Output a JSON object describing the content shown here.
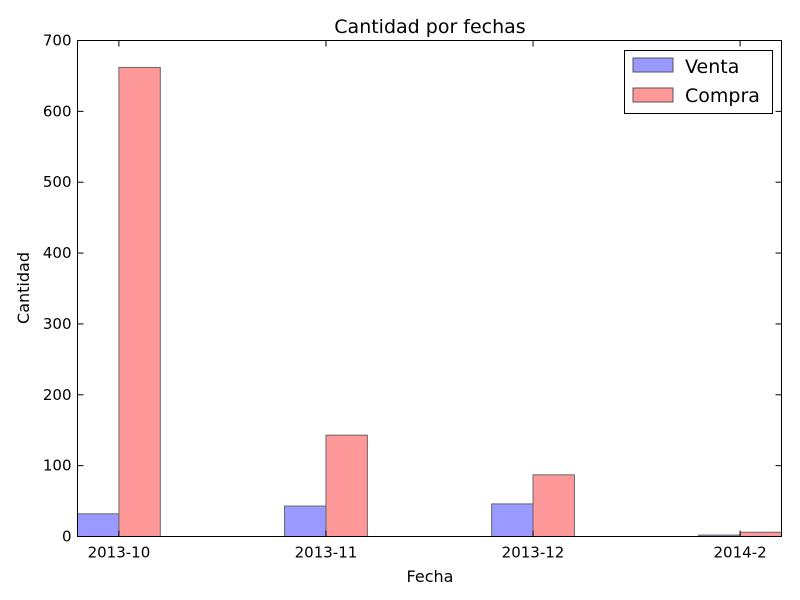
{
  "chart_data": {
    "type": "bar",
    "title": "Cantidad por fechas",
    "xlabel": "Fecha",
    "ylabel": "Cantidad",
    "categories": [
      "2013-10",
      "2013-11",
      "2013-12",
      "2014-2"
    ],
    "series": [
      {
        "name": "Venta",
        "values": [
          32,
          43,
          46,
          2
        ],
        "color": "#9999ff"
      },
      {
        "name": "Compra",
        "values": [
          662,
          143,
          87,
          6
        ],
        "color": "#ff9999"
      }
    ],
    "ylim": [
      0,
      700
    ],
    "yticks": [
      "0",
      "100",
      "200",
      "300",
      "400",
      "500",
      "600",
      "700"
    ],
    "grid": false,
    "legend_position": "top-right"
  }
}
